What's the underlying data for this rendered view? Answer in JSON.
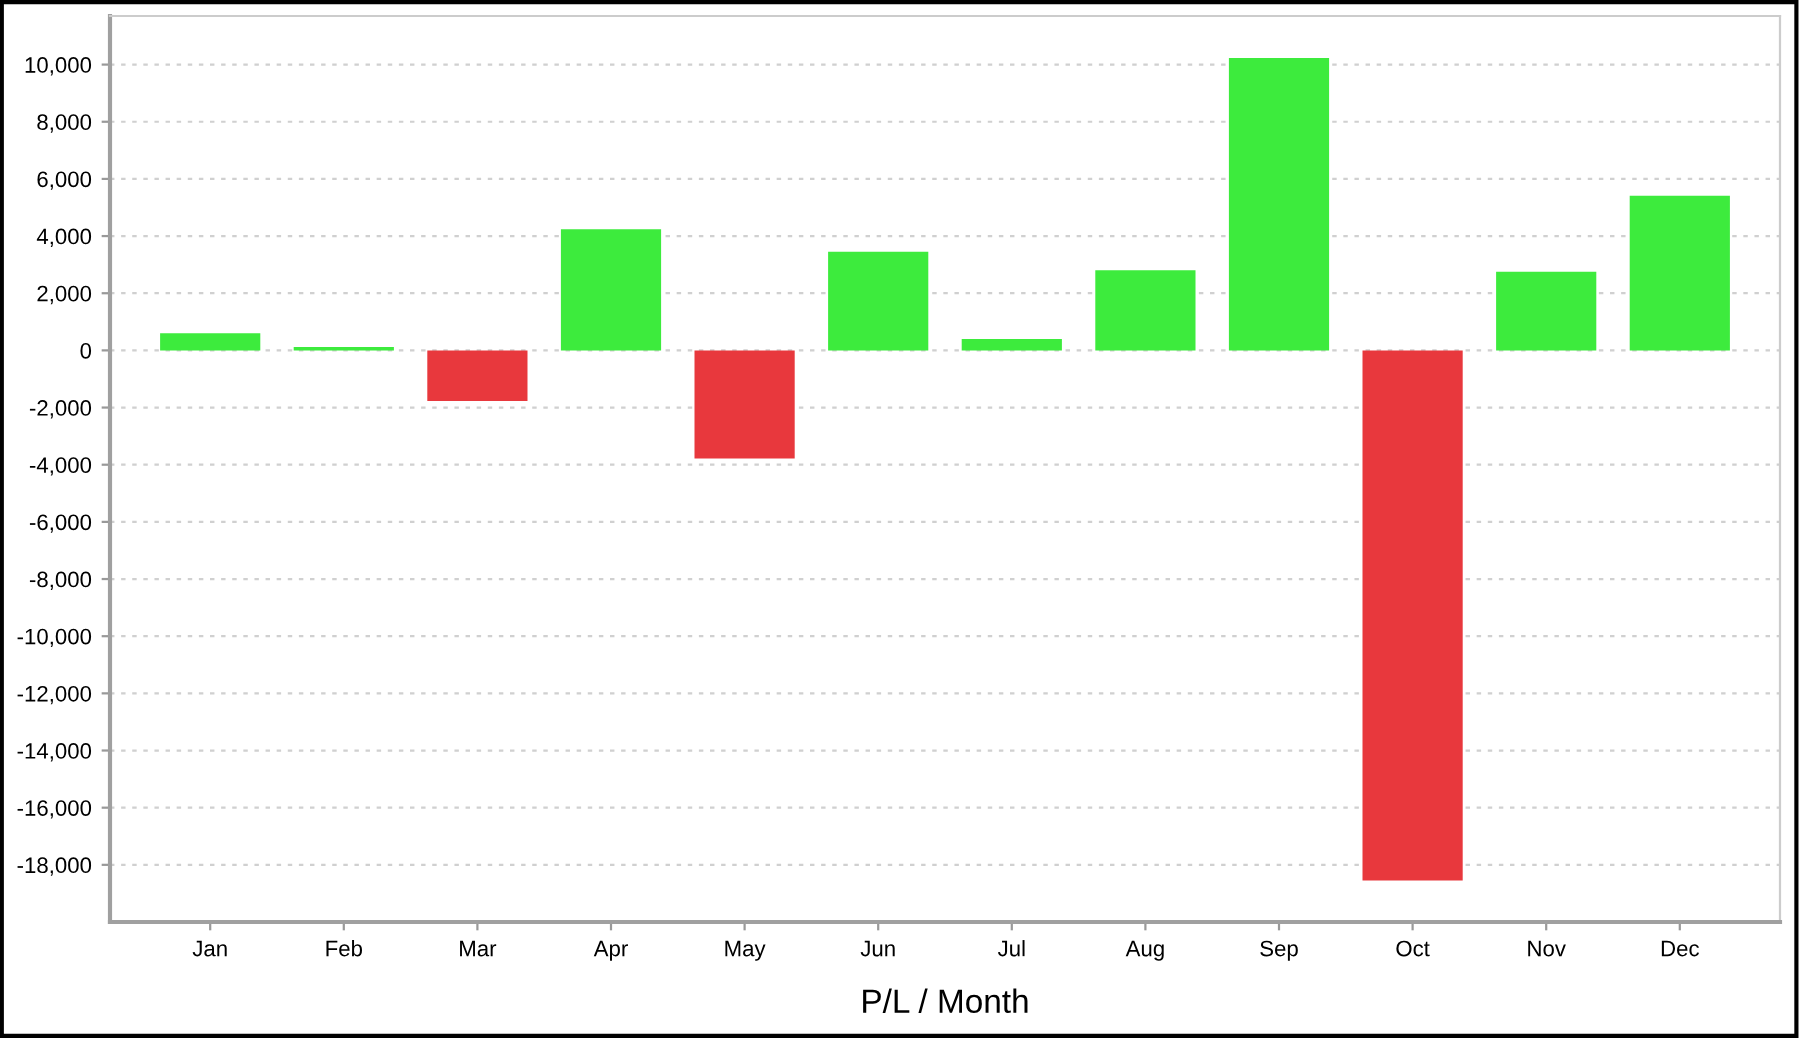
{
  "chart_data": {
    "type": "bar",
    "xlabel": "P/L / Month",
    "categories": [
      "Jan",
      "Feb",
      "Mar",
      "Apr",
      "May",
      "Jun",
      "Jul",
      "Aug",
      "Sep",
      "Oct",
      "Nov",
      "Dec"
    ],
    "values": [
      600,
      120,
      -1770,
      4240,
      -3780,
      3450,
      400,
      2800,
      10230,
      -18550,
      2750,
      5410
    ],
    "colors": [
      "#3deb3d",
      "#3deb3d",
      "#e8383d",
      "#3deb3d",
      "#e8383d",
      "#3deb3d",
      "#3deb3d",
      "#3deb3d",
      "#3deb3d",
      "#e8383d",
      "#3deb3d",
      "#3deb3d"
    ],
    "ylim": [
      -20000,
      11700
    ],
    "yticks": [
      {
        "value": -18000,
        "label": "-18,000"
      },
      {
        "value": -16000,
        "label": "-16,000"
      },
      {
        "value": -14000,
        "label": "-14,000"
      },
      {
        "value": -12000,
        "label": "-12,000"
      },
      {
        "value": -10000,
        "label": "-10,000"
      },
      {
        "value": -8000,
        "label": "-8,000"
      },
      {
        "value": -6000,
        "label": "-6,000"
      },
      {
        "value": -4000,
        "label": "-4,000"
      },
      {
        "value": -2000,
        "label": "-2,000"
      },
      0,
      {
        "value": 2000,
        "label": "2,000"
      },
      {
        "value": 4000,
        "label": "4,000"
      },
      {
        "value": 6000,
        "label": "6,000"
      },
      {
        "value": 8000,
        "label": "8,000"
      },
      {
        "value": 10000,
        "label": "10,000"
      }
    ],
    "grid": "y"
  }
}
